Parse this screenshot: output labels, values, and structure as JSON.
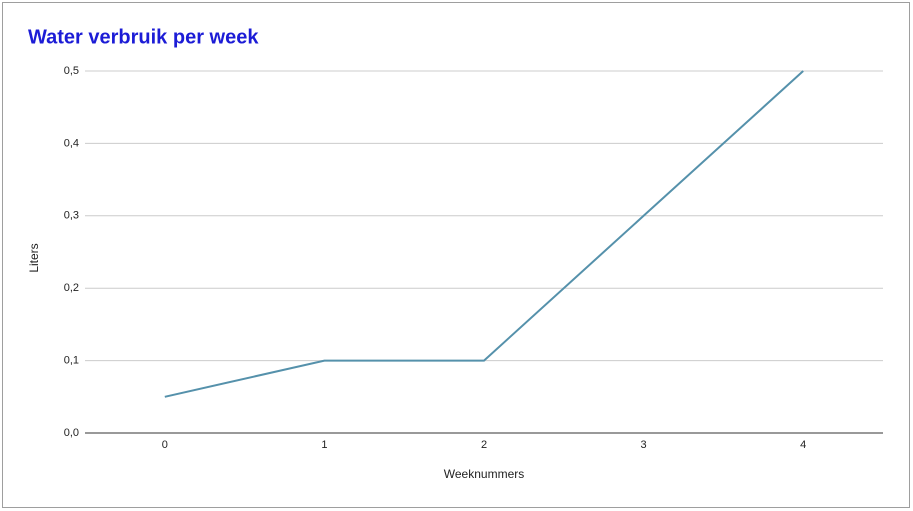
{
  "chart_data": {
    "type": "line",
    "title": "Water verbruik per week",
    "x_label": "Weeknummers",
    "y_label": "Liters",
    "x": [
      0,
      1,
      2,
      3,
      4
    ],
    "series": [
      {
        "name": "Liters",
        "color": "#5591ab",
        "values": [
          0.05,
          0.1,
          0.1,
          0.3,
          0.5
        ]
      }
    ],
    "xlim": [
      -0.5,
      4.5
    ],
    "xticks": [
      0,
      1,
      2,
      3,
      4
    ],
    "ylim": [
      0,
      0.5
    ],
    "yticks": [
      {
        "value": 0,
        "label": "0,0"
      },
      {
        "value": 0.1,
        "label": "0,1"
      },
      {
        "value": 0.2,
        "label": "0,2"
      },
      {
        "value": 0.3,
        "label": "0,3"
      },
      {
        "value": 0.4,
        "label": "0,4"
      },
      {
        "value": 0.5,
        "label": "0,5"
      }
    ],
    "grid": true
  }
}
